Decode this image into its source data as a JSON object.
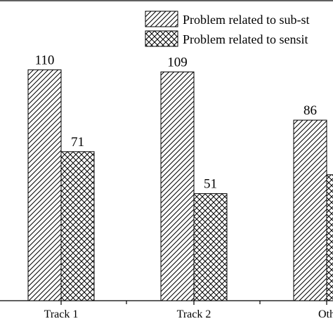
{
  "chart_data": {
    "type": "bar",
    "categories": [
      "Track 1",
      "Track 2",
      "Oth"
    ],
    "series": [
      {
        "name": "Problem related to sub-st",
        "values": [
          110,
          109,
          86
        ],
        "pattern": "diagonal"
      },
      {
        "name": "Problem related to sensit",
        "values": [
          71,
          51,
          60
        ],
        "pattern": "crosshatch"
      }
    ],
    "data_labels": [
      [
        "110",
        "109",
        "86"
      ],
      [
        "71",
        "51",
        ""
      ]
    ],
    "ylim": [
      0,
      140
    ],
    "legend": "top-right",
    "grid": false,
    "colors": {
      "stroke": "#000000",
      "fill": "#ffffff"
    }
  }
}
